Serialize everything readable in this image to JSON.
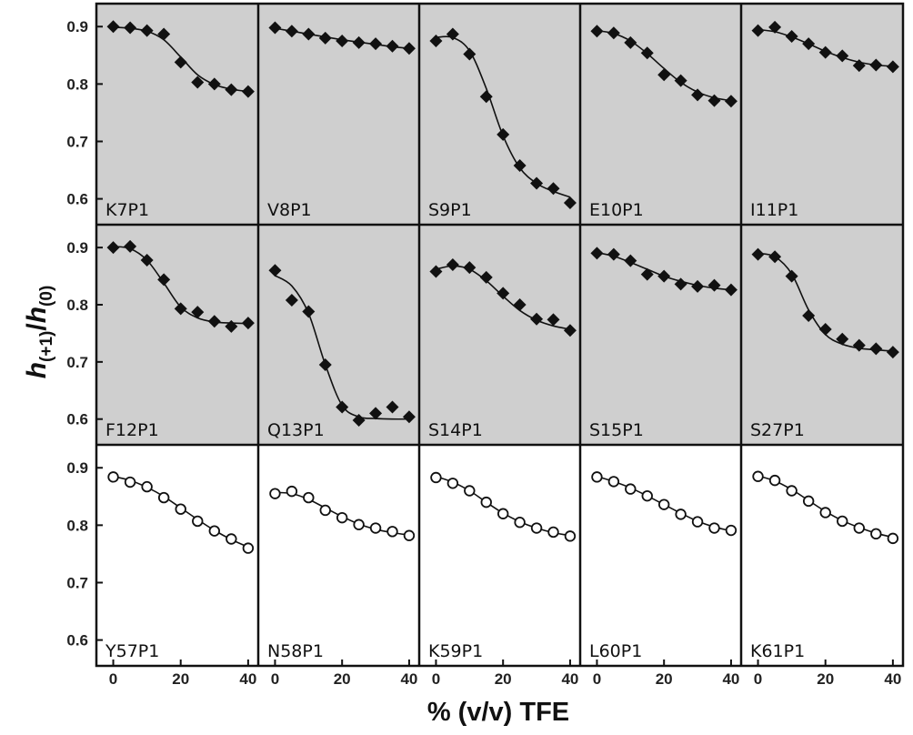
{
  "chart_data": {
    "type": "scatter",
    "figure": {
      "xlabel": "% (v/v) TFE",
      "ylabel_main": "h",
      "ylabel_sub1": "(+1)",
      "ylabel_sep": "/",
      "ylabel_main2": "h",
      "ylabel_sub2": "(0)",
      "xlim": [
        -5,
        43
      ],
      "ylim": [
        0.555,
        0.94
      ],
      "xticks": [
        0,
        20,
        40
      ],
      "yticks": [
        0.6,
        0.7,
        0.8,
        0.9
      ],
      "xtick_labels": [
        "0",
        "20",
        "40"
      ],
      "ytick_labels": [
        "0.6",
        "0.7",
        "0.8",
        "0.9"
      ],
      "background_rows": [
        "#cfcfcf",
        "#cfcfcf",
        "#ffffff"
      ],
      "marker_by_row": [
        "diamond",
        "diamond",
        "circle"
      ]
    },
    "panels": [
      {
        "label": "K7P1",
        "x": [
          0,
          5,
          10,
          15,
          20,
          25,
          30,
          35,
          40
        ],
        "y": [
          0.9,
          0.898,
          0.893,
          0.887,
          0.838,
          0.803,
          0.8,
          0.79,
          0.787
        ],
        "fit": [
          0.899,
          0.897,
          0.892,
          0.877,
          0.847,
          0.816,
          0.799,
          0.791,
          0.787
        ]
      },
      {
        "label": "V8P1",
        "x": [
          0,
          5,
          10,
          15,
          20,
          25,
          30,
          35,
          40
        ],
        "y": [
          0.898,
          0.892,
          0.887,
          0.88,
          0.875,
          0.872,
          0.87,
          0.866,
          0.862
        ],
        "fit": [
          0.897,
          0.892,
          0.887,
          0.882,
          0.877,
          0.873,
          0.869,
          0.865,
          0.862
        ]
      },
      {
        "label": "S9P1",
        "x": [
          0,
          5,
          10,
          15,
          20,
          25,
          30,
          35,
          40
        ],
        "y": [
          0.875,
          0.887,
          0.852,
          0.778,
          0.712,
          0.658,
          0.627,
          0.618,
          0.593
        ],
        "fit": [
          0.881,
          0.881,
          0.858,
          0.792,
          0.71,
          0.654,
          0.627,
          0.613,
          0.603
        ]
      },
      {
        "label": "E10P1",
        "x": [
          0,
          5,
          10,
          15,
          20,
          25,
          30,
          35,
          40
        ],
        "y": [
          0.892,
          0.889,
          0.872,
          0.854,
          0.816,
          0.806,
          0.781,
          0.771,
          0.77
        ],
        "fit": [
          0.893,
          0.888,
          0.875,
          0.853,
          0.827,
          0.803,
          0.786,
          0.776,
          0.771
        ]
      },
      {
        "label": "I11P1",
        "x": [
          0,
          5,
          10,
          15,
          20,
          25,
          30,
          35,
          40
        ],
        "y": [
          0.893,
          0.899,
          0.883,
          0.87,
          0.855,
          0.849,
          0.832,
          0.833,
          0.83
        ],
        "fit": [
          0.895,
          0.891,
          0.882,
          0.87,
          0.857,
          0.846,
          0.838,
          0.833,
          0.831
        ]
      },
      {
        "label": "F12P1",
        "x": [
          0,
          5,
          10,
          15,
          20,
          25,
          30,
          35,
          40
        ],
        "y": [
          0.9,
          0.902,
          0.878,
          0.844,
          0.793,
          0.787,
          0.771,
          0.762,
          0.768
        ],
        "fit": [
          0.902,
          0.898,
          0.878,
          0.838,
          0.796,
          0.777,
          0.77,
          0.768,
          0.767
        ]
      },
      {
        "label": "Q13P1",
        "x": [
          0,
          5,
          10,
          15,
          20,
          25,
          30,
          35,
          40
        ],
        "y": [
          0.86,
          0.808,
          0.788,
          0.695,
          0.621,
          0.598,
          0.61,
          0.621,
          0.604
        ],
        "fit": [
          0.851,
          0.833,
          0.785,
          0.695,
          0.624,
          0.604,
          0.601,
          0.6,
          0.6
        ]
      },
      {
        "label": "S14P1",
        "x": [
          0,
          5,
          10,
          15,
          20,
          25,
          30,
          35,
          40
        ],
        "y": [
          0.858,
          0.87,
          0.865,
          0.848,
          0.82,
          0.8,
          0.775,
          0.774,
          0.755
        ],
        "fit": [
          0.862,
          0.868,
          0.862,
          0.842,
          0.815,
          0.79,
          0.773,
          0.763,
          0.757
        ]
      },
      {
        "label": "S15P1",
        "x": [
          0,
          5,
          10,
          15,
          20,
          25,
          30,
          35,
          40
        ],
        "y": [
          0.89,
          0.888,
          0.877,
          0.853,
          0.85,
          0.836,
          0.832,
          0.834,
          0.826
        ],
        "fit": [
          0.891,
          0.885,
          0.874,
          0.862,
          0.85,
          0.841,
          0.834,
          0.829,
          0.826
        ]
      },
      {
        "label": "S27P1",
        "x": [
          0,
          5,
          10,
          15,
          20,
          25,
          30,
          35,
          40
        ],
        "y": [
          0.888,
          0.884,
          0.85,
          0.781,
          0.757,
          0.74,
          0.729,
          0.723,
          0.717
        ],
        "fit": [
          0.89,
          0.884,
          0.854,
          0.791,
          0.748,
          0.731,
          0.724,
          0.721,
          0.719
        ]
      },
      {
        "label": "Y57P1",
        "x": [
          0,
          5,
          10,
          15,
          20,
          25,
          30,
          35,
          40
        ],
        "y": [
          0.884,
          0.875,
          0.867,
          0.848,
          0.828,
          0.807,
          0.79,
          0.776,
          0.76
        ],
        "fit": [
          0.885,
          0.878,
          0.866,
          0.85,
          0.83,
          0.81,
          0.791,
          0.775,
          0.762
        ]
      },
      {
        "label": "N58P1",
        "x": [
          0,
          5,
          10,
          15,
          20,
          25,
          30,
          35,
          40
        ],
        "y": [
          0.855,
          0.859,
          0.848,
          0.826,
          0.813,
          0.801,
          0.795,
          0.789,
          0.782
        ],
        "fit": [
          0.857,
          0.855,
          0.845,
          0.83,
          0.815,
          0.802,
          0.793,
          0.787,
          0.783
        ]
      },
      {
        "label": "K59P1",
        "x": [
          0,
          5,
          10,
          15,
          20,
          25,
          30,
          35,
          40
        ],
        "y": [
          0.883,
          0.873,
          0.86,
          0.84,
          0.82,
          0.805,
          0.795,
          0.788,
          0.781
        ],
        "fit": [
          0.885,
          0.875,
          0.86,
          0.84,
          0.821,
          0.806,
          0.795,
          0.787,
          0.782
        ]
      },
      {
        "label": "L60P1",
        "x": [
          0,
          5,
          10,
          15,
          20,
          25,
          30,
          35,
          40
        ],
        "y": [
          0.884,
          0.876,
          0.863,
          0.851,
          0.836,
          0.819,
          0.806,
          0.795,
          0.791
        ],
        "fit": [
          0.885,
          0.876,
          0.865,
          0.851,
          0.836,
          0.821,
          0.807,
          0.797,
          0.79
        ]
      },
      {
        "label": "K61P1",
        "x": [
          0,
          5,
          10,
          15,
          20,
          25,
          30,
          35,
          40
        ],
        "y": [
          0.885,
          0.878,
          0.86,
          0.842,
          0.822,
          0.807,
          0.795,
          0.785,
          0.777
        ],
        "fit": [
          0.886,
          0.877,
          0.862,
          0.843,
          0.824,
          0.808,
          0.796,
          0.786,
          0.779
        ]
      }
    ]
  }
}
